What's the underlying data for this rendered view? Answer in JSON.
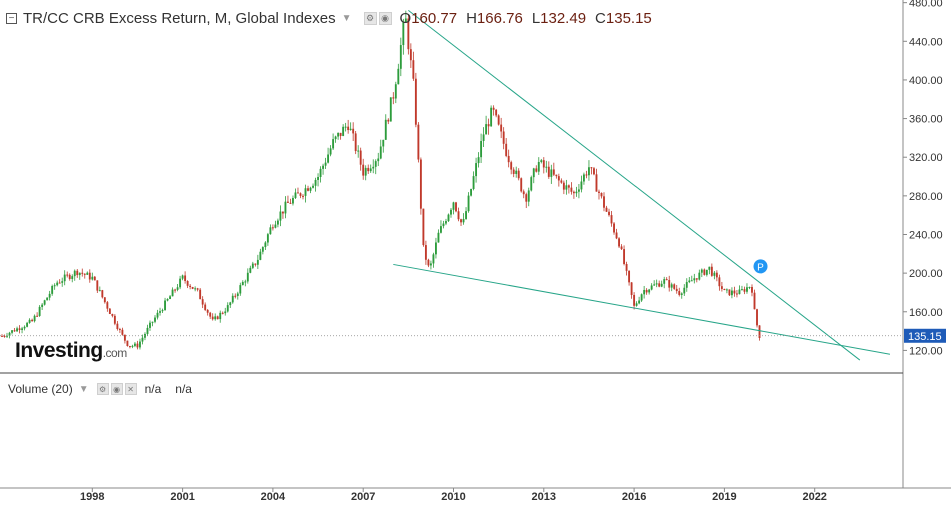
{
  "header": {
    "title": "TR/CC CRB Excess Return, M, Global Indexes",
    "open_label": "O",
    "open": "160.77",
    "high_label": "H",
    "high": "166.76",
    "low_label": "L",
    "low": "132.49",
    "close_label": "C",
    "close": "135.15"
  },
  "volume": {
    "label": "Volume (20)",
    "v1": "n/a",
    "v2": "n/a"
  },
  "logo": {
    "name": "Investing",
    "suffix": ".com"
  },
  "marker": {
    "label": "P"
  },
  "colors": {
    "up": "#2d9c3c",
    "down": "#c0392b",
    "trendline": "#27a589",
    "marker": "#2196f3",
    "price_tag": "#1e5bb8"
  },
  "chart_data": {
    "type": "candlestick",
    "title": "TR/CC CRB Excess Return, M, Global Indexes",
    "y_ticks": [
      "480.00",
      "440.00",
      "400.00",
      "360.00",
      "320.00",
      "280.00",
      "240.00",
      "200.00",
      "160.00",
      "120.00"
    ],
    "x_ticks": [
      "1998",
      "2001",
      "2004",
      "2007",
      "2010",
      "2013",
      "2016",
      "2019",
      "2022"
    ],
    "ylim": [
      108,
      490
    ],
    "xlim": [
      1995.0,
      2025.0
    ],
    "last_price": "135.15",
    "key_points": [
      {
        "t": 1995.0,
        "v": 135
      },
      {
        "t": 1996.0,
        "v": 150
      },
      {
        "t": 1996.8,
        "v": 190
      },
      {
        "t": 1997.5,
        "v": 202
      },
      {
        "t": 1998.0,
        "v": 195
      },
      {
        "t": 1998.5,
        "v": 165
      },
      {
        "t": 1999.0,
        "v": 135
      },
      {
        "t": 1999.2,
        "v": 125
      },
      {
        "t": 1999.5,
        "v": 125
      },
      {
        "t": 2000.0,
        "v": 150
      },
      {
        "t": 2000.5,
        "v": 172
      },
      {
        "t": 2001.0,
        "v": 195
      },
      {
        "t": 2001.5,
        "v": 180
      },
      {
        "t": 2002.0,
        "v": 150
      },
      {
        "t": 2002.5,
        "v": 165
      },
      {
        "t": 2003.0,
        "v": 190
      },
      {
        "t": 2003.5,
        "v": 215
      },
      {
        "t": 2004.0,
        "v": 252
      },
      {
        "t": 2004.5,
        "v": 272
      },
      {
        "t": 2005.0,
        "v": 285
      },
      {
        "t": 2005.5,
        "v": 300
      },
      {
        "t": 2006.0,
        "v": 335
      },
      {
        "t": 2006.5,
        "v": 355
      },
      {
        "t": 2007.0,
        "v": 305
      },
      {
        "t": 2007.5,
        "v": 322
      },
      {
        "t": 2008.0,
        "v": 385
      },
      {
        "t": 2008.4,
        "v": 465
      },
      {
        "t": 2008.7,
        "v": 385
      },
      {
        "t": 2009.0,
        "v": 225
      },
      {
        "t": 2009.2,
        "v": 202
      },
      {
        "t": 2009.5,
        "v": 240
      },
      {
        "t": 2010.0,
        "v": 275
      },
      {
        "t": 2010.3,
        "v": 248
      },
      {
        "t": 2011.0,
        "v": 345
      },
      {
        "t": 2011.3,
        "v": 368
      },
      {
        "t": 2011.8,
        "v": 322
      },
      {
        "t": 2012.4,
        "v": 278
      },
      {
        "t": 2012.8,
        "v": 315
      },
      {
        "t": 2013.5,
        "v": 295
      },
      {
        "t": 2014.0,
        "v": 282
      },
      {
        "t": 2014.5,
        "v": 310
      },
      {
        "t": 2015.0,
        "v": 270
      },
      {
        "t": 2015.5,
        "v": 232
      },
      {
        "t": 2016.0,
        "v": 165
      },
      {
        "t": 2016.3,
        "v": 182
      },
      {
        "t": 2017.0,
        "v": 192
      },
      {
        "t": 2017.5,
        "v": 180
      },
      {
        "t": 2018.0,
        "v": 195
      },
      {
        "t": 2018.5,
        "v": 205
      },
      {
        "t": 2019.0,
        "v": 180
      },
      {
        "t": 2019.5,
        "v": 180
      },
      {
        "t": 2019.9,
        "v": 188
      },
      {
        "t": 2020.0,
        "v": 160
      },
      {
        "t": 2020.15,
        "v": 135
      }
    ],
    "trendlines": [
      {
        "name": "upper",
        "from": {
          "t": 2008.5,
          "v": 472
        },
        "to": {
          "t": 2023.5,
          "v": 110
        }
      },
      {
        "name": "lower",
        "from": {
          "t": 2008.0,
          "v": 209
        },
        "to": {
          "t": 2024.5,
          "v": 116
        }
      }
    ]
  }
}
